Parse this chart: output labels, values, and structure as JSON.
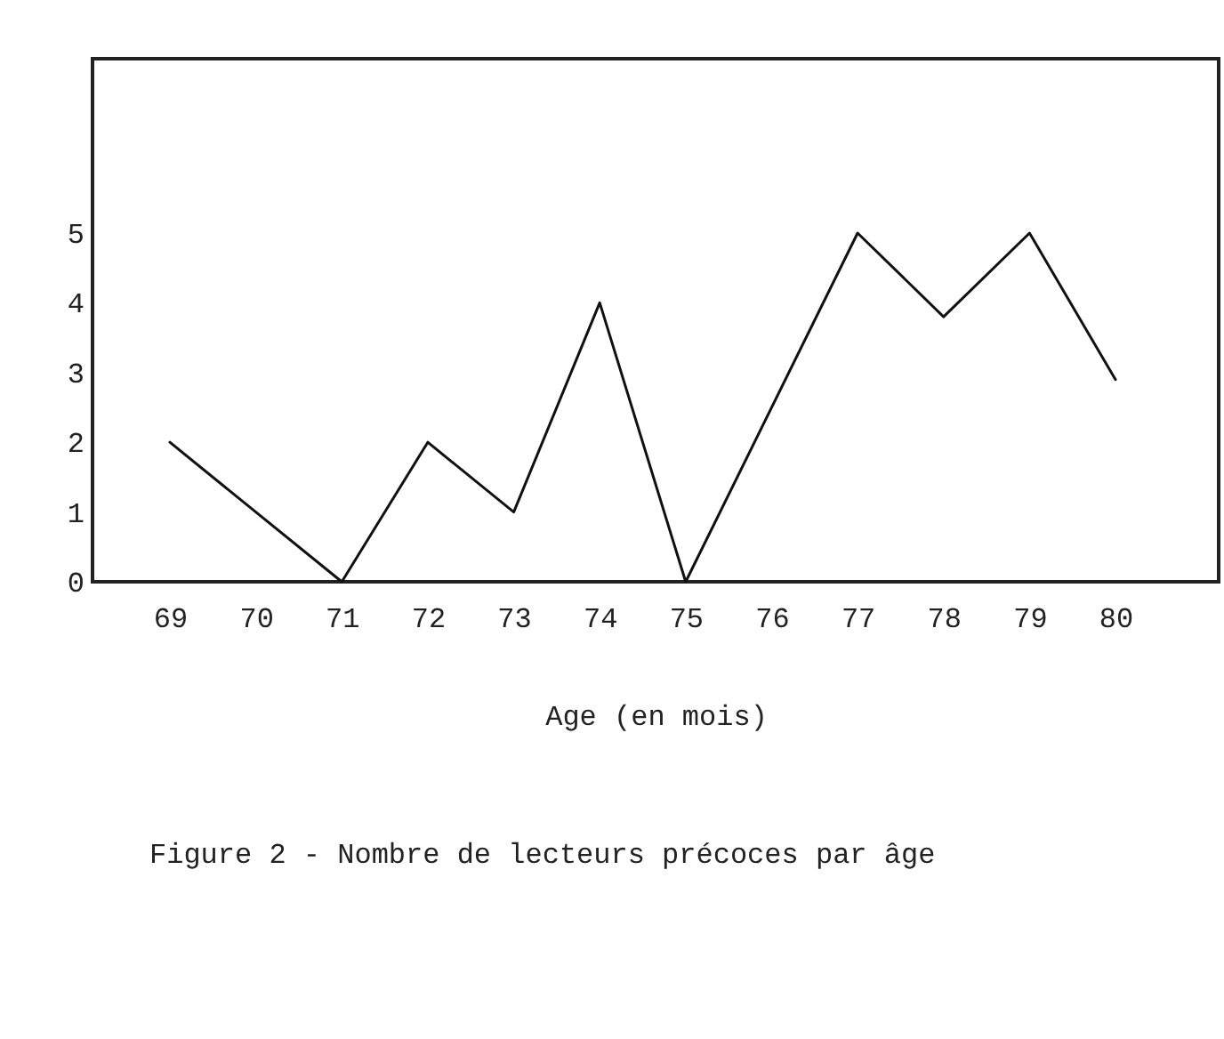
{
  "chart_data": {
    "type": "line",
    "title": "Figure 2 - Nombre de lecteurs précoces par âge",
    "xlabel": "Age (en mois)",
    "x": [
      69,
      71,
      72,
      73,
      74,
      75,
      77,
      78,
      79,
      80
    ],
    "series": [
      {
        "color": "#111111",
        "values": [
          2,
          0,
          2,
          1,
          4,
          0,
          5,
          3.8,
          5,
          2.9
        ]
      }
    ],
    "xlim": [
      68.1,
      81.2
    ],
    "xticks": [
      69,
      70,
      71,
      72,
      73,
      74,
      75,
      76,
      77,
      78,
      79,
      80
    ],
    "ylim": [
      0,
      7.5
    ],
    "yticks": [
      0,
      1,
      2,
      3,
      4,
      5
    ]
  }
}
